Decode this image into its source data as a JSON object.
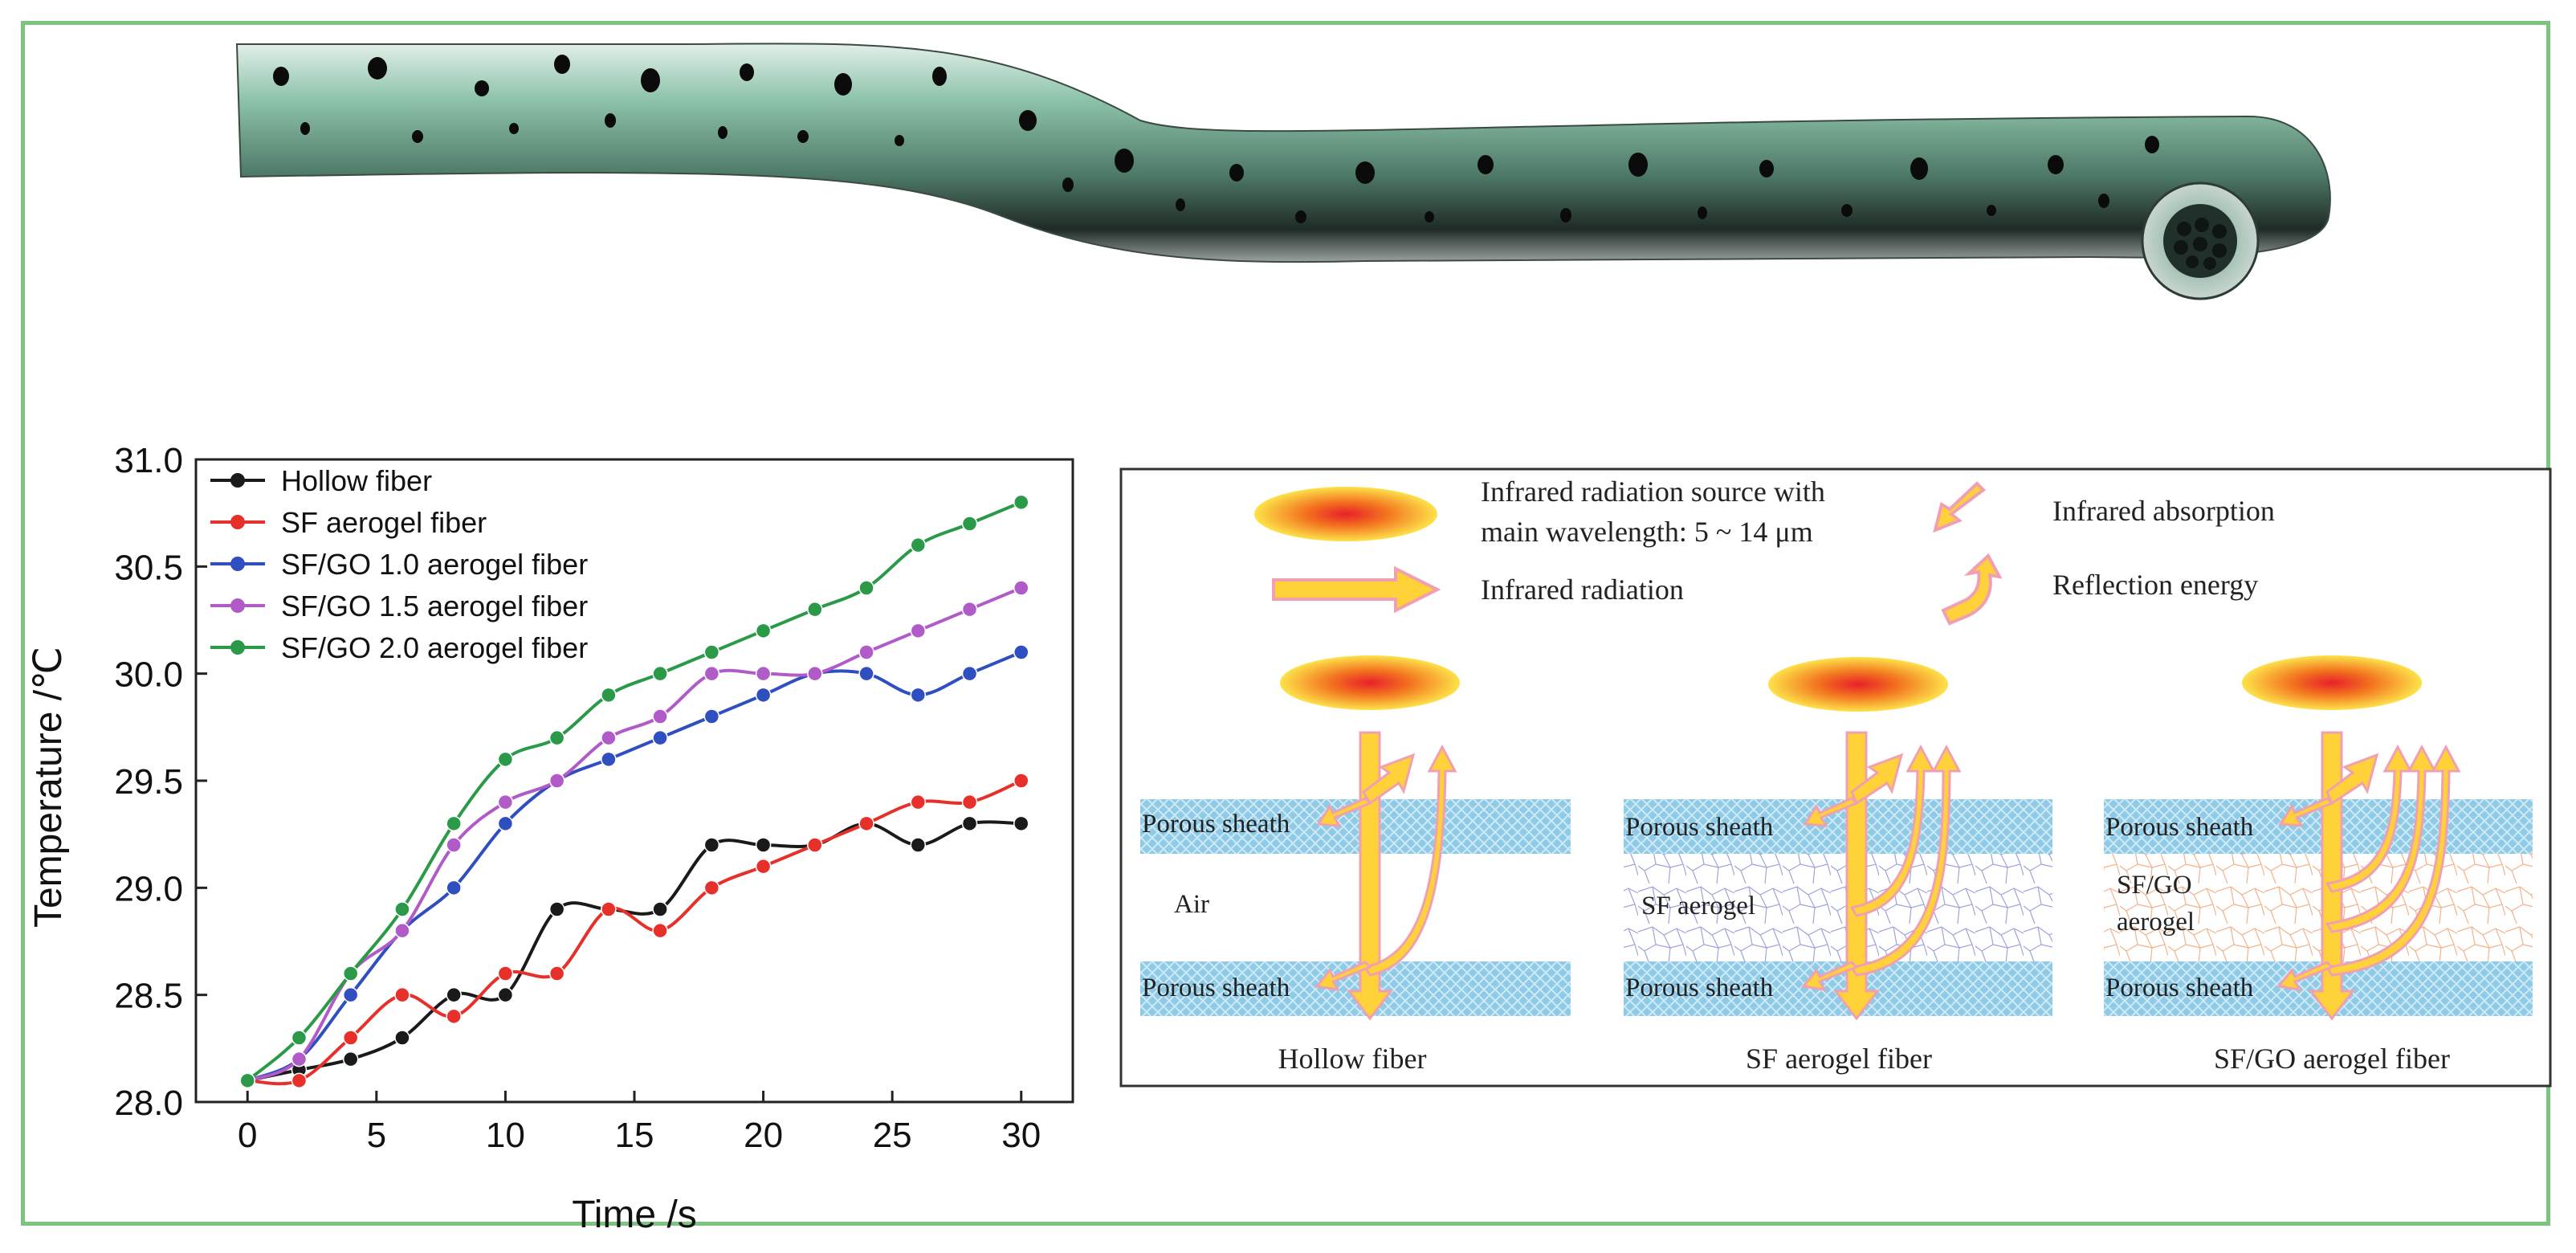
{
  "chart_data": {
    "type": "line",
    "xlabel": "Time /s",
    "ylabel": "Temperature /℃",
    "xlim": [
      -2,
      32
    ],
    "ylim": [
      28.0,
      31.0
    ],
    "xticks": [
      "0",
      "5",
      "10",
      "15",
      "20",
      "25",
      "30"
    ],
    "yticks": [
      "28.0",
      "28.5",
      "29.0",
      "29.5",
      "30.0",
      "30.5",
      "31.0"
    ],
    "legend_position": "top-left",
    "x": [
      0,
      2,
      4,
      6,
      8,
      10,
      12,
      14,
      16,
      18,
      20,
      22,
      24,
      26,
      28,
      30
    ],
    "series": [
      {
        "name": "Hollow fiber",
        "color": "#1a1a1a",
        "values": [
          28.1,
          28.15,
          28.2,
          28.3,
          28.5,
          28.5,
          28.9,
          28.9,
          28.9,
          29.2,
          29.2,
          29.2,
          29.3,
          29.2,
          29.3,
          29.3
        ]
      },
      {
        "name": "SF aerogel fiber",
        "color": "#e8302a",
        "values": [
          28.1,
          28.1,
          28.3,
          28.5,
          28.4,
          28.6,
          28.6,
          28.9,
          28.8,
          29.0,
          29.1,
          29.2,
          29.3,
          29.4,
          29.4,
          29.5
        ]
      },
      {
        "name": "SF/GO 1.0 aerogel fiber",
        "color": "#2f4fc0",
        "values": [
          28.1,
          28.2,
          28.5,
          28.8,
          29.0,
          29.3,
          29.5,
          29.6,
          29.7,
          29.8,
          29.9,
          30.0,
          30.0,
          29.9,
          30.0,
          30.1
        ]
      },
      {
        "name": "SF/GO 1.5 aerogel fiber",
        "color": "#b05bc8",
        "values": [
          28.1,
          28.2,
          28.6,
          28.8,
          29.2,
          29.4,
          29.5,
          29.7,
          29.8,
          30.0,
          30.0,
          30.0,
          30.1,
          30.2,
          30.3,
          30.4
        ]
      },
      {
        "name": "SF/GO 2.0 aerogel fiber",
        "color": "#2a9a48",
        "values": [
          28.1,
          28.3,
          28.6,
          28.9,
          29.3,
          29.6,
          29.7,
          29.9,
          30.0,
          30.1,
          30.2,
          30.3,
          30.4,
          30.6,
          30.7,
          30.8
        ]
      }
    ]
  },
  "diagram": {
    "legend": {
      "source_label_line1": "Infrared radiation source with",
      "source_label_line2": "main wavelength: 5 ~ 14 μm",
      "radiation_label": "Infrared radiation",
      "absorption_label": "Infrared absorption",
      "reflection_label": "Reflection energy"
    },
    "panels": [
      {
        "caption": "Hollow fiber",
        "top_layer": "Porous sheath",
        "middle": "Air",
        "bottom_layer": "Porous sheath"
      },
      {
        "caption": "SF aerogel fiber",
        "top_layer": "Porous sheath",
        "middle": "SF aerogel",
        "bottom_layer": "Porous sheath"
      },
      {
        "caption": "SF/GO aerogel fiber",
        "top_layer": "Porous sheath",
        "middle_line1": "SF/GO",
        "middle_line2": "aerogel",
        "bottom_layer": "Porous sheath"
      }
    ]
  },
  "colors": {
    "frame": "#7cc47f",
    "fiber": "#7fb8a0",
    "sheath": "#8fcbe6",
    "arrow_fill": "#ffd23a",
    "arrow_edge": "#f0a0b0"
  }
}
